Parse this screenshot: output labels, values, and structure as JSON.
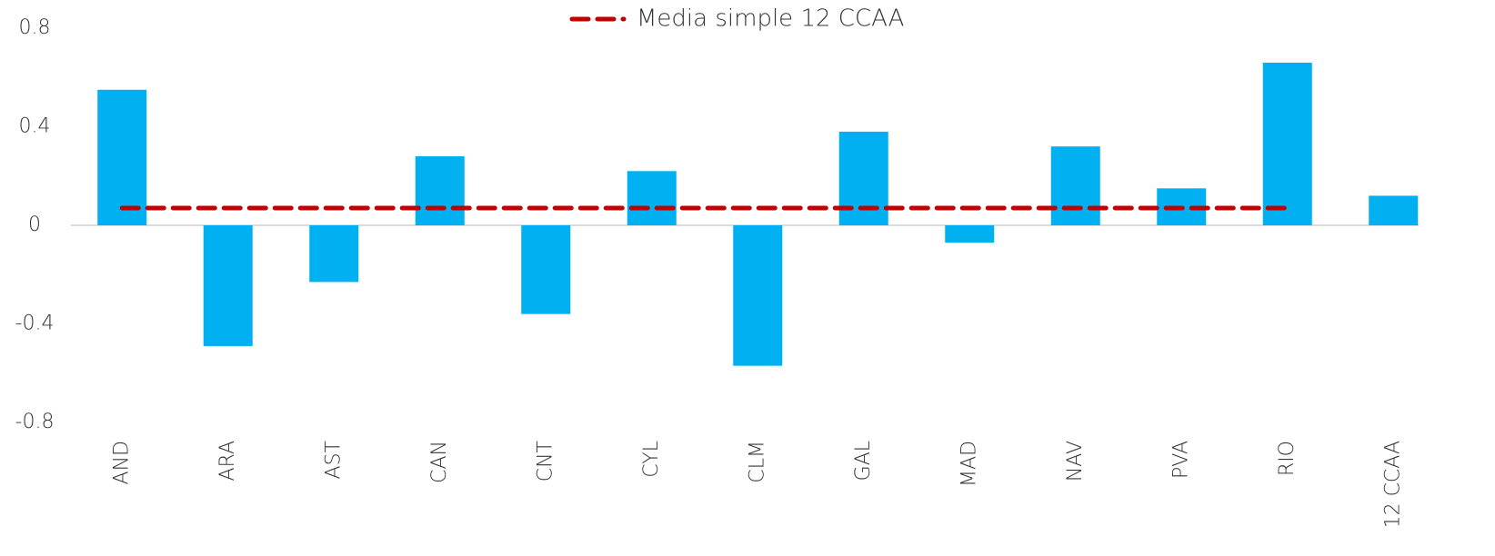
{
  "chart_data": {
    "type": "bar",
    "categories": [
      "AND",
      "ARA",
      "AST",
      "CAN",
      "CNT",
      "CYL",
      "CLM",
      "GAL",
      "MAD",
      "NAV",
      "PVA",
      "RIO",
      "12 CCAA"
    ],
    "series": [
      {
        "type": "bar",
        "color": "#00b0f0",
        "values": [
          0.55,
          -0.49,
          -0.23,
          0.28,
          -0.36,
          0.22,
          -0.57,
          0.38,
          -0.07,
          0.32,
          0.15,
          0.66,
          0.12
        ]
      },
      {
        "type": "line",
        "name": "Media simple 12 CCAA",
        "color": "#c00000",
        "dashed": true,
        "values": [
          0.07,
          0.07,
          0.07,
          0.07,
          0.07,
          0.07,
          0.07,
          0.07,
          0.07,
          0.07,
          0.07,
          0.07,
          null
        ]
      }
    ],
    "ylim": [
      -0.8,
      0.8
    ],
    "yticks": [
      0.8,
      0.4,
      0,
      -0.4,
      -0.8
    ],
    "legend": "top"
  }
}
